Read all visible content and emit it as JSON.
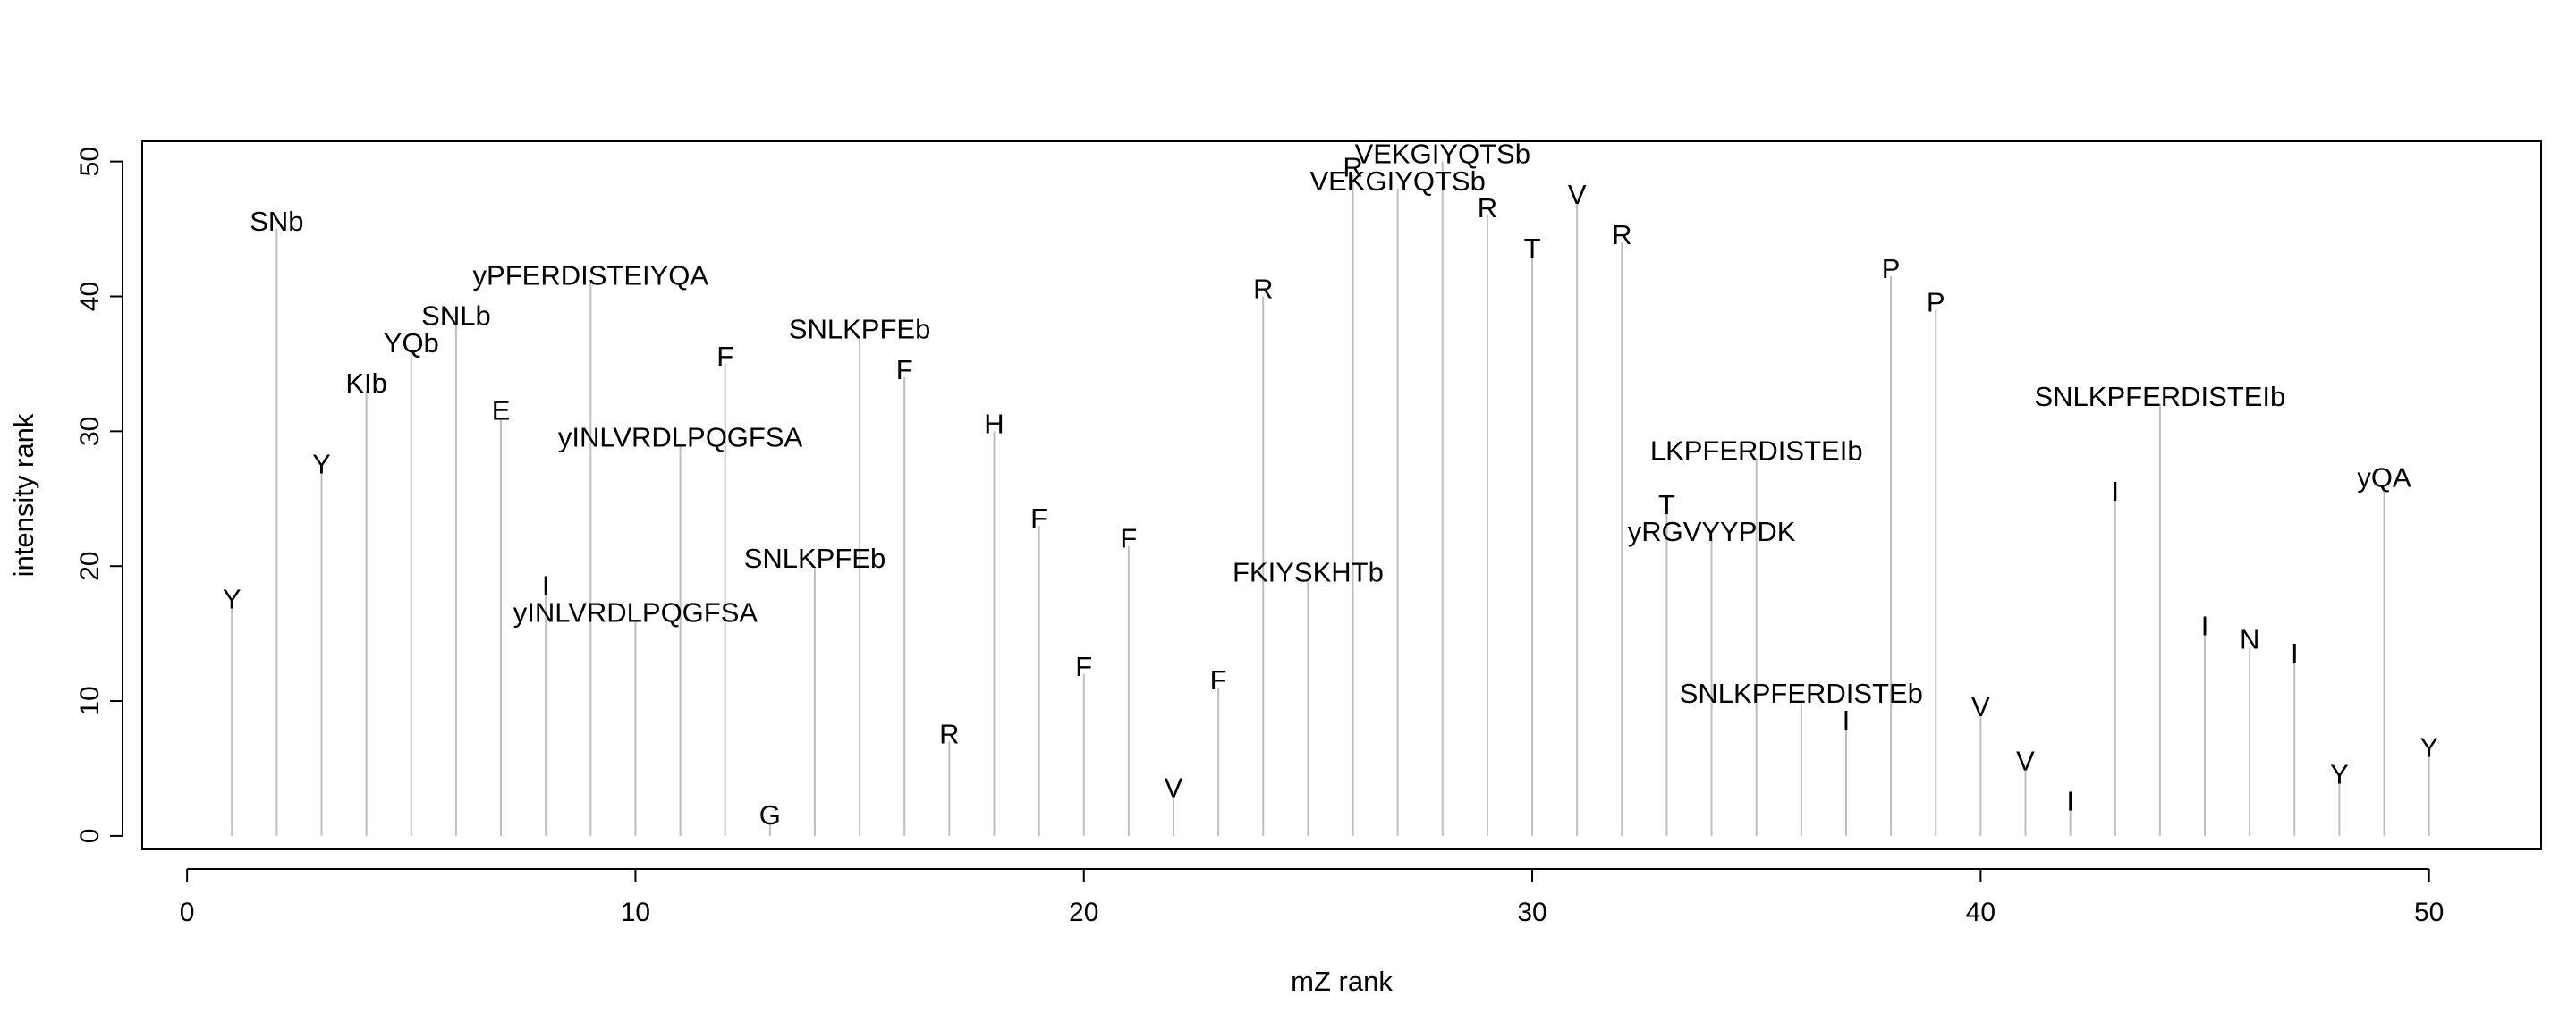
{
  "chart_data": {
    "type": "stem",
    "xlabel": "mZ rank",
    "ylabel": "intensity rank",
    "xlim": [
      -1,
      52.5
    ],
    "ylim": [
      -1,
      51.5
    ],
    "x_ticks": [
      0,
      10,
      20,
      30,
      40,
      50
    ],
    "y_ticks": [
      0,
      10,
      20,
      30,
      40,
      50
    ],
    "grid": false,
    "stem_color": "#bebebe",
    "points": [
      {
        "x": 1,
        "y": 17,
        "label": "Y"
      },
      {
        "x": 2,
        "y": 45,
        "label": "SNb"
      },
      {
        "x": 3,
        "y": 27,
        "label": "Y"
      },
      {
        "x": 4,
        "y": 33,
        "label": "KIb"
      },
      {
        "x": 5,
        "y": 36,
        "label": "YQb"
      },
      {
        "x": 6,
        "y": 38,
        "label": "SNLb"
      },
      {
        "x": 7,
        "y": 31,
        "label": "E"
      },
      {
        "x": 8,
        "y": 18,
        "label": "I"
      },
      {
        "x": 9,
        "y": 41,
        "label": "yPFERDISTEIYQA"
      },
      {
        "x": 10,
        "y": 16,
        "label": "yINLVRDLPQGFSA"
      },
      {
        "x": 11,
        "y": 29,
        "label": "yINLVRDLPQGFSA"
      },
      {
        "x": 12,
        "y": 35,
        "label": "F"
      },
      {
        "x": 13,
        "y": 1,
        "label": "G"
      },
      {
        "x": 14,
        "y": 20,
        "label": "SNLKPFEb"
      },
      {
        "x": 15,
        "y": 37,
        "label": "SNLKPFEb"
      },
      {
        "x": 16,
        "y": 34,
        "label": "F"
      },
      {
        "x": 17,
        "y": 7,
        "label": "R"
      },
      {
        "x": 18,
        "y": 30,
        "label": "H"
      },
      {
        "x": 19,
        "y": 23,
        "label": "F"
      },
      {
        "x": 20,
        "y": 12,
        "label": "F"
      },
      {
        "x": 21,
        "y": 21.5,
        "label": "F"
      },
      {
        "x": 22,
        "y": 3,
        "label": "V"
      },
      {
        "x": 23,
        "y": 11,
        "label": "F"
      },
      {
        "x": 24,
        "y": 40,
        "label": "R"
      },
      {
        "x": 25,
        "y": 19,
        "label": "FKIYSKHTb"
      },
      {
        "x": 26,
        "y": 49,
        "label": "R"
      },
      {
        "x": 27,
        "y": 48,
        "label": "VEKGIYQTSb"
      },
      {
        "x": 28,
        "y": 50,
        "label": "VEKGIYQTSb"
      },
      {
        "x": 29,
        "y": 46,
        "label": "R"
      },
      {
        "x": 30,
        "y": 43,
        "label": "T"
      },
      {
        "x": 31,
        "y": 47,
        "label": "V"
      },
      {
        "x": 32,
        "y": 44,
        "label": "R"
      },
      {
        "x": 33,
        "y": 24,
        "label": "T"
      },
      {
        "x": 34,
        "y": 22,
        "label": "yRGVYYPDK"
      },
      {
        "x": 35,
        "y": 28,
        "label": "LKPFERDISTEIb"
      },
      {
        "x": 36,
        "y": 10,
        "label": "SNLKPFERDISTEb"
      },
      {
        "x": 37,
        "y": 8,
        "label": "I"
      },
      {
        "x": 38,
        "y": 41.5,
        "label": "P"
      },
      {
        "x": 39,
        "y": 39,
        "label": "P"
      },
      {
        "x": 40,
        "y": 9,
        "label": "V"
      },
      {
        "x": 41,
        "y": 5,
        "label": "V"
      },
      {
        "x": 42,
        "y": 2,
        "label": "I"
      },
      {
        "x": 43,
        "y": 25,
        "label": "I"
      },
      {
        "x": 44,
        "y": 32,
        "label": "SNLKPFERDISTEIb"
      },
      {
        "x": 45,
        "y": 15,
        "label": "I"
      },
      {
        "x": 46,
        "y": 14,
        "label": "N"
      },
      {
        "x": 47,
        "y": 13,
        "label": "I"
      },
      {
        "x": 48,
        "y": 4,
        "label": "Y"
      },
      {
        "x": 49,
        "y": 26,
        "label": "yQA"
      },
      {
        "x": 50,
        "y": 6,
        "label": "Y"
      }
    ]
  }
}
